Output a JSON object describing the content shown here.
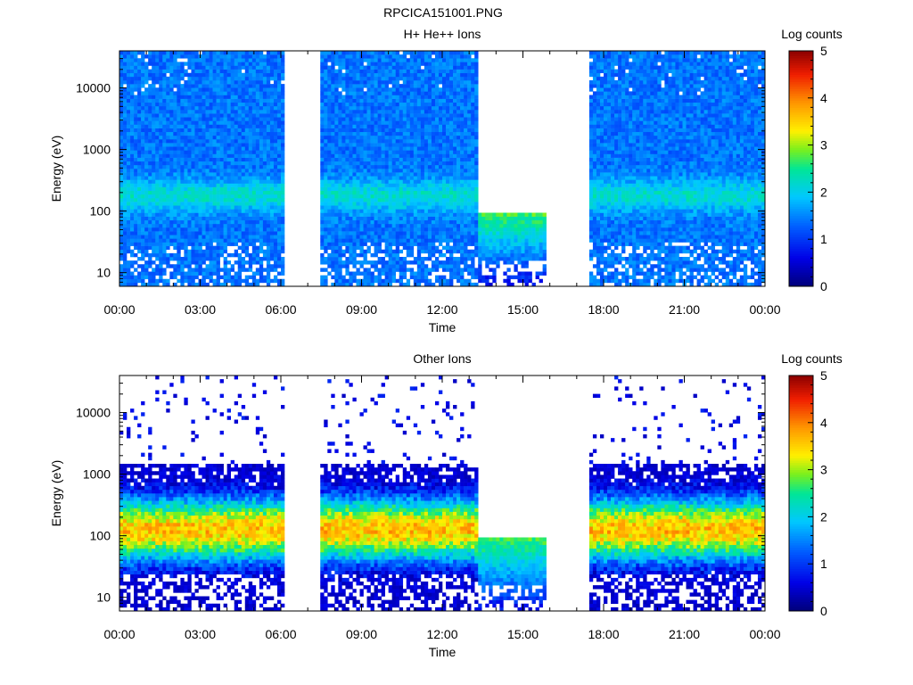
{
  "file_title": "RPCICA151001.PNG",
  "chart_data": [
    {
      "type": "heatmap",
      "title": "H+ He++ Ions",
      "xlabel": "Time",
      "ylabel": "Energy (eV)",
      "x_ticks": [
        "00:00",
        "03:00",
        "06:00",
        "09:00",
        "12:00",
        "15:00",
        "18:00",
        "21:00",
        "00:00"
      ],
      "y_ticks": [
        "10",
        "100",
        "1000",
        "10000"
      ],
      "y_scale": "log",
      "ylim": [
        6,
        40000
      ],
      "xlim_hours": [
        0,
        24
      ],
      "colorbar": {
        "label": "Log counts",
        "ticks": [
          "0",
          "1",
          "2",
          "3",
          "4",
          "5"
        ],
        "range": [
          0,
          5
        ]
      },
      "data_gaps_hours": [
        [
          6.1,
          7.5
        ],
        [
          15.9,
          17.5
        ]
      ],
      "low_mode_interval_hours": [
        13.3,
        15.9
      ],
      "low_mode_top_eV": 100,
      "dominant_log_counts": 1.4,
      "peak_band_eV": [
        100,
        300
      ],
      "peak_log_counts": 2.0
    },
    {
      "type": "heatmap",
      "title": "Other Ions",
      "xlabel": "Time",
      "ylabel": "Energy (eV)",
      "x_ticks": [
        "00:00",
        "03:00",
        "06:00",
        "09:00",
        "12:00",
        "15:00",
        "18:00",
        "21:00",
        "00:00"
      ],
      "y_ticks": [
        "10",
        "100",
        "1000",
        "10000"
      ],
      "y_scale": "log",
      "ylim": [
        6,
        40000
      ],
      "xlim_hours": [
        0,
        24
      ],
      "colorbar": {
        "label": "Log counts",
        "ticks": [
          "0",
          "1",
          "2",
          "3",
          "4",
          "5"
        ],
        "range": [
          0,
          5
        ]
      },
      "data_gaps_hours": [
        [
          6.1,
          7.5
        ],
        [
          15.9,
          17.5
        ]
      ],
      "low_mode_interval_hours": [
        13.3,
        15.9
      ],
      "low_mode_top_eV": 100,
      "peak_band_eV": [
        60,
        250
      ],
      "peak_log_counts": 3.6,
      "sparse_above_eV": 1500
    }
  ]
}
